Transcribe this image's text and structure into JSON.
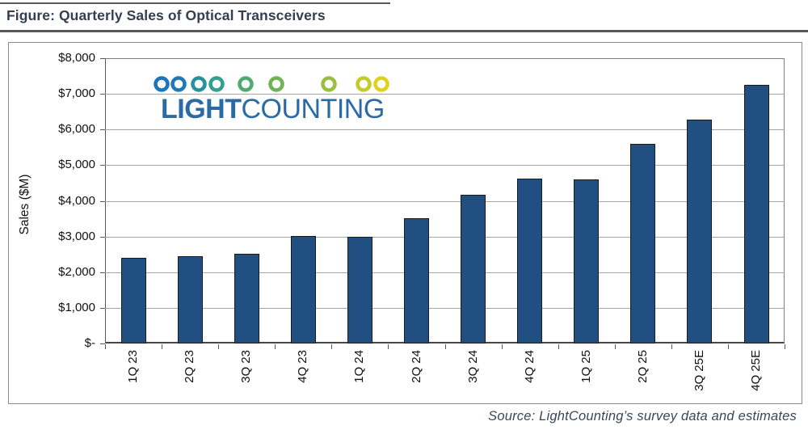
{
  "figure": {
    "title": "Figure: Quarterly Sales of Optical Transceivers",
    "source": "Source: LightCounting’s survey data and estimates"
  },
  "logo": {
    "name": "LightCounting",
    "word_bold": "LIGHT",
    "word_regular": "COUNTING",
    "text_color": "#2A6BA6",
    "chain_line_start_color": "#1C75BC",
    "chain_line_end_color": "#E8D615",
    "chain_circle_colors": [
      "#1C75BC",
      "#1E79B6",
      "#26919F",
      "#31A08C",
      "#4FAB6F",
      "#6FB354",
      "#98C03C",
      "#C3CC29",
      "#DDD31D"
    ]
  },
  "chart_data": {
    "type": "bar",
    "title": "",
    "xlabel": "",
    "ylabel": "Sales ($M)",
    "categories": [
      "1Q 23",
      "2Q 23",
      "3Q 23",
      "4Q 23",
      "1Q 24",
      "2Q 24",
      "3Q 24",
      "4Q 24",
      "1Q 25",
      "2Q 25",
      "3Q 25E",
      "4Q 25E"
    ],
    "values": [
      2400,
      2460,
      2510,
      3020,
      3000,
      3520,
      4160,
      4620,
      4610,
      5600,
      6280,
      7260
    ],
    "ylim": [
      0,
      8000
    ],
    "ytick_step": 1000,
    "ytick_labels": [
      "$-",
      "$1,000",
      "$2,000",
      "$3,000",
      "$4,000",
      "$5,000",
      "$6,000",
      "$7,000",
      "$8,000"
    ],
    "grid": true,
    "legend": false,
    "bar_color": "#224F82",
    "bar_border_color": "#1A1A1A",
    "gridline_color": "#A6A6A6"
  }
}
